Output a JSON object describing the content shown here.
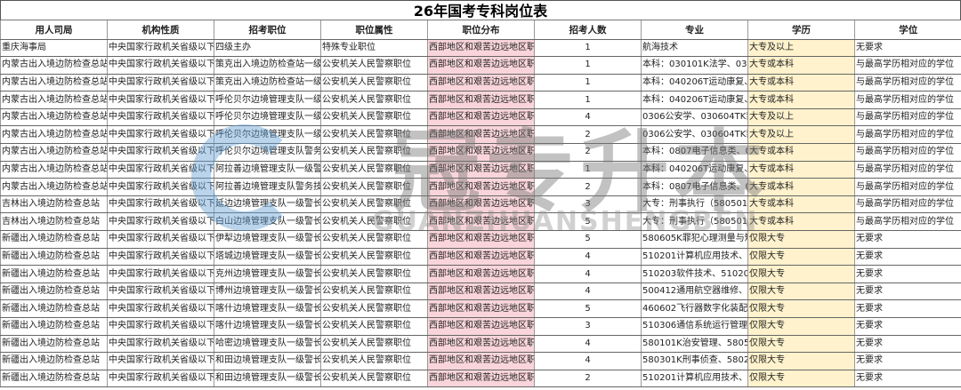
{
  "title": "26年国考专科岗位表",
  "headers": [
    "用人司局",
    "机构性质",
    "招考职位",
    "职位属性",
    "职位分布",
    "招考人数",
    "专业",
    "学历",
    "学位"
  ],
  "rows": [
    [
      "重庆海事局",
      "中央国家行政机关省级以下直",
      "四级主办",
      "特殊专业职位",
      "西部地区和艰苦边远地区职位",
      "1",
      "航海技术",
      "大专及以上",
      "无要求"
    ],
    [
      "内蒙古出入境边防检查总站",
      "中央国家行政机关省级以下直",
      "策克出入境边防检查站一级警",
      "公安机关人民警察职位",
      "西部地区和艰苦边远地区职位",
      "1",
      "本科：030101K法学、03010",
      "大专或本科",
      "与最高学历相对应的学位"
    ],
    [
      "内蒙古出入境边防检查总站",
      "中央国家行政机关省级以下直",
      "策克出入境边防检查站一级警",
      "公安机关人民警察职位",
      "西部地区和艰苦边远地区职位",
      "1",
      "本科：040206T运动康复、07",
      "大专或本科",
      "与最高学历相对应的学位"
    ],
    [
      "内蒙古出入境边防检查总站",
      "中央国家行政机关省级以下直",
      "呼伦贝尔边境管理支队一级警",
      "公安机关人民警察职位",
      "西部地区和艰苦边远地区职位",
      "1",
      "本科：040206T运动康复、07",
      "大专或本科",
      "与最高学历相对应的学位"
    ],
    [
      "内蒙古出入境边防检查总站",
      "中央国家行政机关省级以下直",
      "呼伦贝尔边境管理支队一级警",
      "公安机关人民警察职位",
      "西部地区和艰苦边远地区职位",
      "4",
      "0306公安学、030604TK禁毒",
      "大专及以上",
      "与最高学历相对应的学位"
    ],
    [
      "内蒙古出入境边防检查总站",
      "中央国家行政机关省级以下直",
      "呼伦贝尔边境管理支队一级警",
      "公安机关人民警察职位",
      "西部地区和艰苦边远地区职位",
      "2",
      "0306公安学、030604TK禁毒",
      "大专及以上",
      "与最高学历相对应的学位"
    ],
    [
      "内蒙古出入境边防检查总站",
      "中央国家行政机关省级以下直",
      "呼伦贝尔边境管理支队警务技",
      "公安机关人民警察职位",
      "西部地区和艰苦边远地区职位",
      "2",
      "本科：0807电子信息类、080",
      "大专或本科",
      "与最高学历相对应的学位"
    ],
    [
      "内蒙古出入境边防检查总站",
      "中央国家行政机关省级以下直",
      "阿拉善边境管理支队一级警长",
      "公安机关人民警察职位",
      "西部地区和艰苦边远地区职位",
      "1",
      "本科：040206T运动康复、07",
      "大专或本科",
      "与最高学历相对应的学位"
    ],
    [
      "内蒙古出入境边防检查总站",
      "中央国家行政机关省级以下直",
      "阿拉善边境管理支队警务技术",
      "公安机关人民警察职位",
      "西部地区和艰苦边远地区职位",
      "2",
      "本科：0807电子信息类、080",
      "大专或本科",
      "与最高学历相对应的学位"
    ],
    [
      "吉林出入境边防检查总站",
      "中央国家行政机关省级以下直",
      "延边边境管理支队一级警长及",
      "公安机关人民警察职位",
      "西部地区和艰苦边远地区职位",
      "3",
      "大专：刑事执行（580501）、",
      "大专或本科",
      "与最高学历相对应的学位"
    ],
    [
      "吉林出入境边防检查总站",
      "中央国家行政机关省级以下直",
      "白山边境管理支队一级警长及",
      "公安机关人民警察职位",
      "西部地区和艰苦边远地区职位",
      "5",
      "大专：刑事执行（580501）、",
      "大专或本科",
      "与最高学历相对应的学位"
    ],
    [
      "新疆出入境边防检查总站",
      "中央国家行政机关省级以下直",
      "伊犁边境管理支队一级警长及",
      "公安机关人民警察职位",
      "西部地区和艰苦边远地区职位",
      "5",
      "580605K罪犯心理测量与矫正",
      "仅限大专",
      "无要求"
    ],
    [
      "新疆出入境边防检查总站",
      "中央国家行政机关省级以下直",
      "塔城边境管理支队一级警长及",
      "公安机关人民警察职位",
      "西部地区和艰苦边远地区职位",
      "4",
      "510201计算机应用技术、510",
      "仅限大专",
      "无要求"
    ],
    [
      "新疆出入境边防检查总站",
      "中央国家行政机关省级以下直",
      "克州边境管理支队一级警长及",
      "公安机关人民警察职位",
      "西部地区和艰苦边远地区职位",
      "4",
      "510203软件技术、510205大数",
      "仅限大专",
      "无要求"
    ],
    [
      "新疆出入境边防检查总站",
      "中央国家行政机关省级以下直",
      "博州边境管理支队一级警长及",
      "公安机关人民警察职位",
      "西部地区和艰苦边远地区职位",
      "4",
      "500412通用航空器维修、550",
      "仅限大专",
      "无要求"
    ],
    [
      "新疆出入境边防检查总站",
      "中央国家行政机关省级以下直",
      "喀什边境管理支队一级警长及",
      "公安机关人民警察职位",
      "西部地区和艰苦边远地区职位",
      "5",
      "460602飞行器数字化装配技术",
      "仅限大专",
      "无要求"
    ],
    [
      "新疆出入境边防检查总站",
      "中央国家行政机关省级以下直",
      "喀什边境管理支队一级警长及",
      "公安机关人民警察职位",
      "西部地区和艰苦边远地区职位",
      "3",
      "510306通信系统运行管理、5",
      "仅限大专",
      "无要求"
    ],
    [
      "新疆出入境边防检查总站",
      "中央国家行政机关省级以下直",
      "哈密边境管理支队一级警长及",
      "公安机关人民警察职位",
      "西部地区和艰苦边远地区职位",
      "4",
      "580101K治安管理、580504K",
      "仅限大专",
      "无要求"
    ],
    [
      "新疆出入境边防检查总站",
      "中央国家行政机关省级以下直",
      "和田边境管理支队一级警长及",
      "公安机关人民警察职位",
      "西部地区和艰苦边远地区职位",
      "4",
      "580301K刑事侦查、580201K",
      "仅限大专",
      "无要求"
    ],
    [
      "新疆出入境边防检查总站",
      "中央国家行政机关省级以下直",
      "和田边境管理支队一级警长及",
      "公安机关人民警察职位",
      "西部地区和艰苦边远地区职位",
      "2",
      "510201计算机应用技术、510",
      "仅限大专",
      "无要求"
    ]
  ],
  "colors": {
    "distribution_fill": "#f9d5db",
    "education_fill": "#fff2cc"
  },
  "watermark": {
    "cn": "冠专升本",
    "en": "GUANZHUANSHENGBEN"
  }
}
